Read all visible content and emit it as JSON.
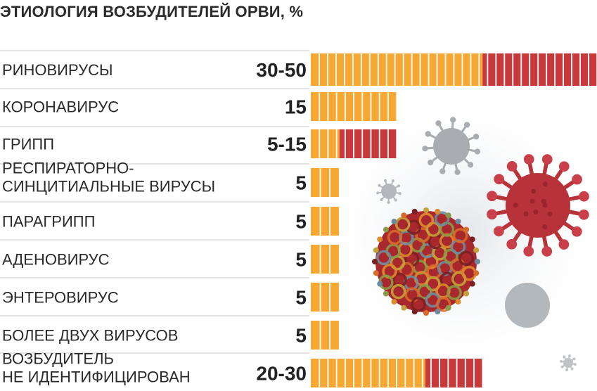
{
  "chart_data": {
    "type": "bar",
    "title": "ЭТИОЛОГИЯ ВОЗБУДИТЕЛЕЙ ОРВИ, %",
    "xlabel": "",
    "ylabel": "",
    "xlim": [
      0,
      50
    ],
    "categories": [
      [
        "РИНОВИРУСЫ"
      ],
      [
        "КОРОНАВИРУС"
      ],
      [
        "ГРИПП"
      ],
      [
        "РЕСПИРАТОРНО-",
        "СИНЦИТИАЛЬНЫЕ ВИРУСЫ"
      ],
      [
        "ПАРАГРИПП"
      ],
      [
        "АДЕНОВИРУС"
      ],
      [
        "ЭНТЕРОВИРУС"
      ],
      [
        "БОЛЕЕ ДВУХ ВИРУСОВ"
      ],
      [
        "ВОЗБУДИТЕЛЬ",
        "НЕ ИДЕНТИФИЦИРОВАН"
      ]
    ],
    "value_labels": [
      "30-50",
      "15",
      "5-15",
      "5",
      "5",
      "5",
      "5",
      "5",
      "20-30"
    ],
    "series": [
      {
        "name": "min",
        "values": [
          30,
          15,
          5,
          5,
          5,
          5,
          5,
          5,
          20
        ]
      },
      {
        "name": "max",
        "values": [
          50,
          15,
          15,
          5,
          5,
          5,
          5,
          5,
          30
        ]
      }
    ],
    "colors": {
      "min": "#f7a833",
      "range": "#c8393b",
      "divider": "#c8c8c8",
      "background": "#ffffff"
    }
  }
}
